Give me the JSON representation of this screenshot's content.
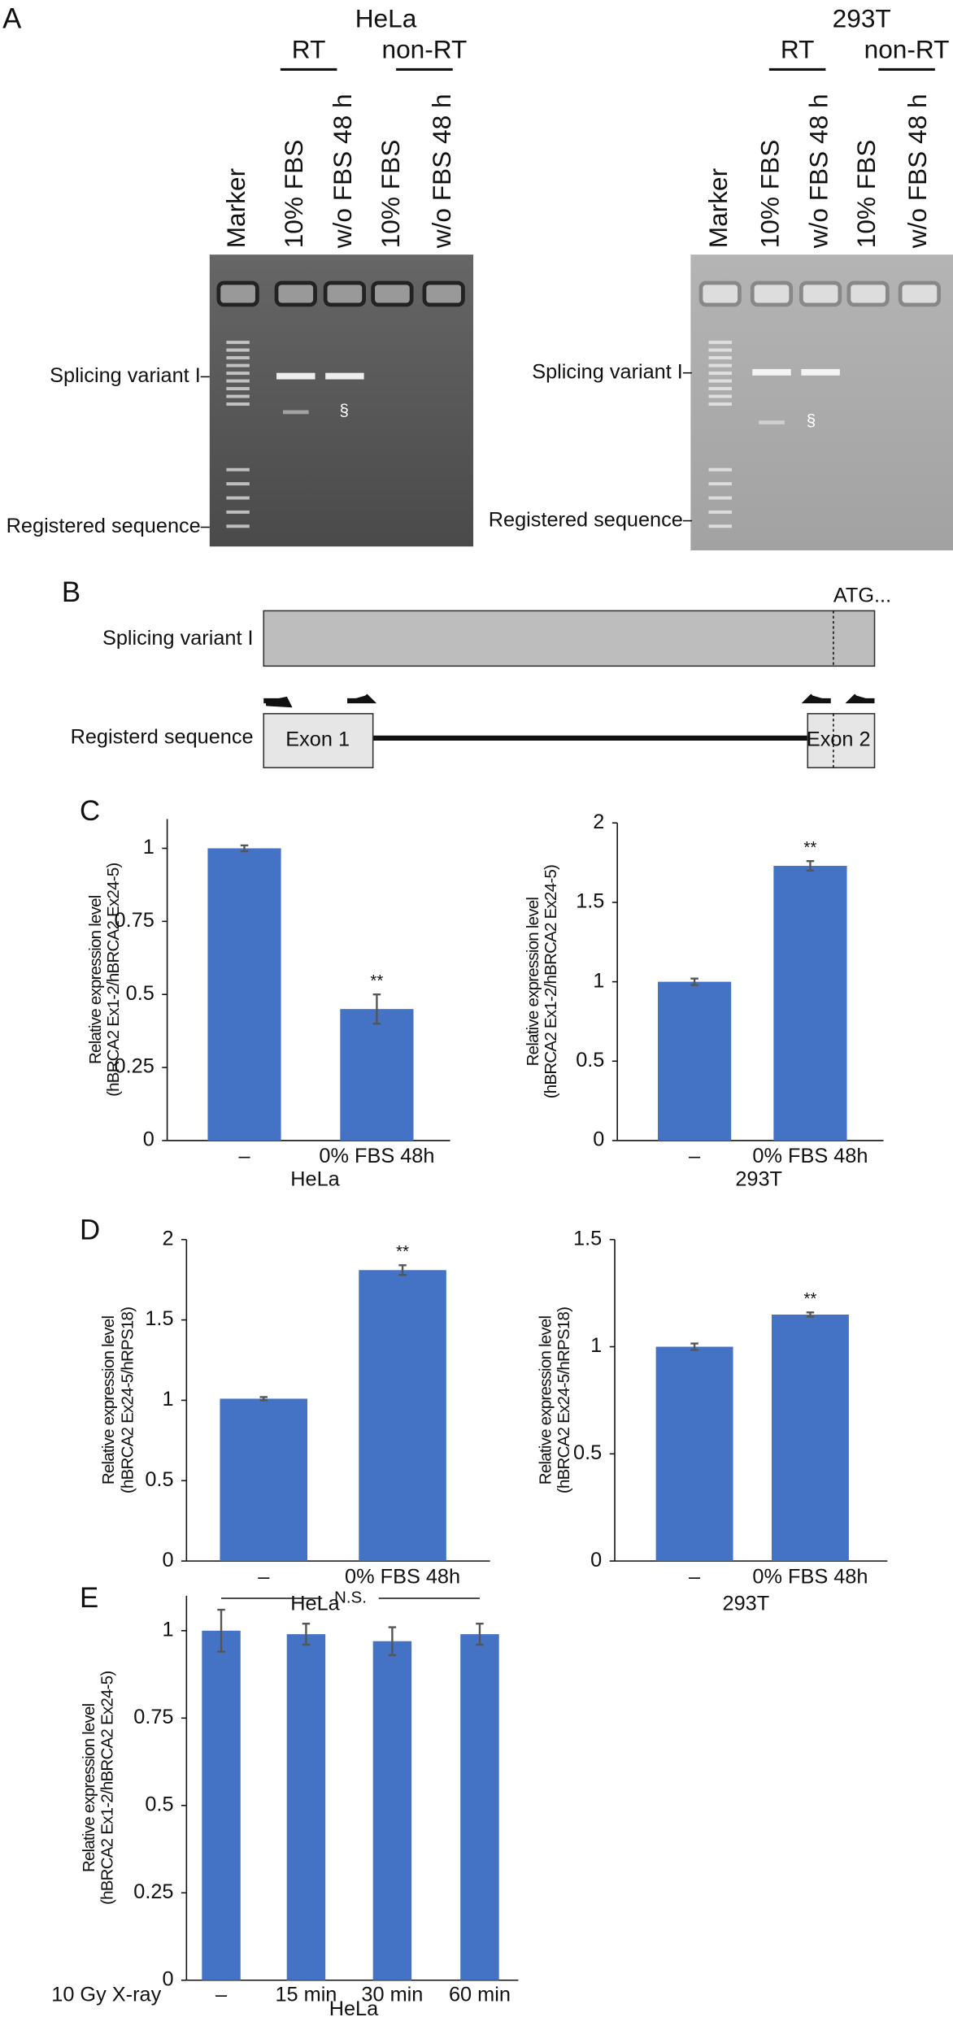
{
  "panels": [
    "A",
    "B",
    "C",
    "D",
    "E"
  ],
  "gels": [
    {
      "title": "HeLa",
      "groups": [
        "RT",
        "non-RT"
      ],
      "lanes": [
        "Marker",
        "10% FBS",
        "w/o FBS 48 h",
        "10% FBS",
        "w/o FBS 48 h"
      ],
      "bands": [
        "Splicing variant I",
        "Registered sequence"
      ],
      "mark": "§"
    },
    {
      "title": "293T",
      "groups": [
        "RT",
        "non-RT"
      ],
      "lanes": [
        "Marker",
        "10% FBS",
        "w/o FBS 48 h",
        "10% FBS",
        "w/o FBS 48 h"
      ],
      "bands": [
        "Splicing variant I",
        "Registered sequence"
      ],
      "mark": "§"
    }
  ],
  "diagram": {
    "variant": "Splicing variant I",
    "start": "ATG...",
    "registered": "Registerd sequence",
    "exons": [
      "Exon 1",
      "Exon 2"
    ]
  },
  "chart_data": [
    {
      "type": "bar",
      "categories": [
        "–",
        "0% FBS 48h"
      ],
      "values": [
        1,
        0.45
      ],
      "errors": [
        0.01,
        0.05
      ],
      "significance": [
        null,
        "**"
      ],
      "x_label": "HeLa",
      "y_label": [
        "Relative expression level",
        "(hBRCA2 Ex1-2/hBRCA2 Ex24-5)"
      ],
      "ylim": [
        0,
        1.1
      ],
      "yticks": [
        0,
        0.25,
        0.5,
        0.75,
        1
      ],
      "color": "#4472c4"
    },
    {
      "type": "bar",
      "categories": [
        "–",
        "0% FBS 48h"
      ],
      "values": [
        1,
        1.73
      ],
      "errors": [
        0.02,
        0.03
      ],
      "significance": [
        null,
        "**"
      ],
      "x_label": "293T",
      "y_label": [
        "Relative expression level",
        "(hBRCA2 Ex1-2/hBRCA2 Ex24-5)"
      ],
      "ylim": [
        0,
        2
      ],
      "yticks": [
        0,
        0.5,
        1,
        1.5,
        2
      ],
      "color": "#4472c4"
    },
    {
      "type": "bar",
      "categories": [
        "–",
        "0% FBS 48h"
      ],
      "values": [
        1.01,
        1.81
      ],
      "errors": [
        0.01,
        0.03
      ],
      "significance": [
        null,
        "**"
      ],
      "x_label": "HeLa",
      "y_label": [
        "Relative expression level",
        "(hBRCA2 Ex24-5/hRPS18)"
      ],
      "ylim": [
        0,
        2
      ],
      "yticks": [
        0,
        0.5,
        1,
        1.5,
        2
      ],
      "color": "#4472c4"
    },
    {
      "type": "bar",
      "categories": [
        "–",
        "0% FBS 48h"
      ],
      "values": [
        1,
        1.15
      ],
      "errors": [
        0.015,
        0.01
      ],
      "significance": [
        null,
        "**"
      ],
      "x_label": "293T",
      "y_label": [
        "Relative expression level",
        "(hBRCA2 Ex24-5/hRPS18)"
      ],
      "ylim": [
        0,
        1.5
      ],
      "yticks": [
        0,
        0.5,
        1,
        1.5
      ],
      "color": "#4472c4"
    },
    {
      "type": "bar",
      "categories": [
        "–",
        "15 min",
        "30 min",
        "60 min"
      ],
      "values": [
        1,
        0.99,
        0.97,
        0.99
      ],
      "errors": [
        0.06,
        0.03,
        0.04,
        0.03
      ],
      "significance": [
        null,
        null,
        null,
        null
      ],
      "annotation": "N.S.",
      "row_label": "10 Gy X-ray",
      "x_label": "HeLa",
      "y_label": [
        "Relative expression level",
        "(hBRCA2 Ex1-2/hBRCA2 Ex24-5)"
      ],
      "ylim": [
        0,
        1.1
      ],
      "yticks": [
        0,
        0.25,
        0.5,
        0.75,
        1
      ],
      "color": "#4472c4"
    }
  ]
}
